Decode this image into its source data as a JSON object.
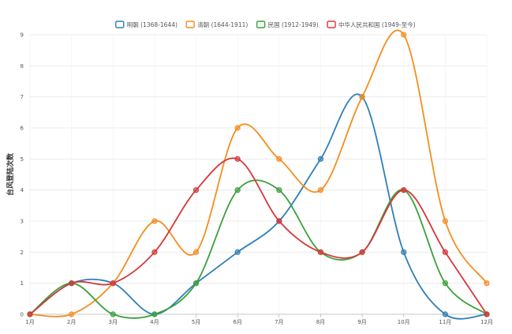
{
  "chart_data": {
    "type": "line",
    "title": "",
    "xlabel": "",
    "ylabel": "台风登陆次数",
    "categories": [
      "1月",
      "2月",
      "3月",
      "4月",
      "5月",
      "6月",
      "7月",
      "8月",
      "9月",
      "10月",
      "11月",
      "12月"
    ],
    "ylim": [
      0,
      9
    ],
    "yticks": [
      0,
      1,
      2,
      3,
      4,
      5,
      6,
      7,
      8,
      9
    ],
    "grid": true,
    "legend_position": "top",
    "series": [
      {
        "name": "明朝 (1368-1644)",
        "color": "#2e7fb8",
        "values": [
          0,
          1,
          1,
          0,
          1,
          2,
          3,
          5,
          7,
          2,
          0,
          0
        ]
      },
      {
        "name": "清朝 (1644-1911)",
        "color": "#f58d1f",
        "values": [
          0,
          0,
          1,
          3,
          2,
          6,
          5,
          4,
          7,
          9,
          3,
          1
        ]
      },
      {
        "name": "民国 (1912-1949)",
        "color": "#3aa13a",
        "values": [
          0,
          1,
          0,
          0,
          1,
          4,
          4,
          2,
          2,
          4,
          1,
          0
        ]
      },
      {
        "name": "中华人民共和国 (1949-至今)",
        "color": "#d6373a",
        "values": [
          0,
          1,
          1,
          2,
          4,
          5,
          3,
          2,
          2,
          4,
          2,
          0
        ]
      }
    ]
  }
}
